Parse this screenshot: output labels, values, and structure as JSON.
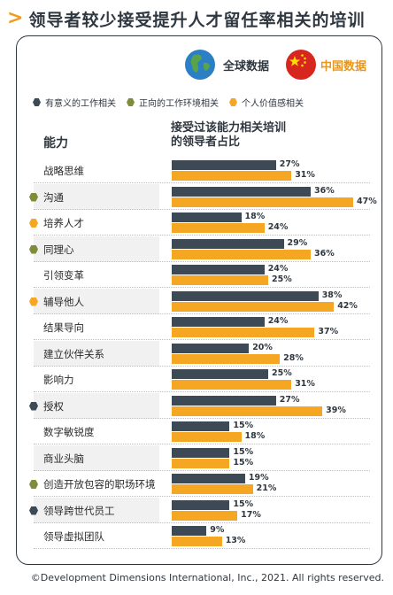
{
  "title": "领导者较少接受提升人才留任率相关的培训",
  "badges": {
    "global": "全球数据",
    "china": "中国数据"
  },
  "legend": [
    {
      "label": "有意义的工作相关",
      "color": "#3d4a56"
    },
    {
      "label": "正向的工作环境相关",
      "color": "#7d8d3a"
    },
    {
      "label": "个人价值感相关",
      "color": "#f5a623"
    }
  ],
  "column_caption": "能力",
  "column_title_line1": "接受过该能力相关培训",
  "column_title_line2": "的领导者占比",
  "footer": "©Development Dimensions International, Inc., 2021. All rights reserved.",
  "colors": {
    "global": "#3d4a56",
    "china": "#f5a623",
    "row_shade": "#f1f1f1"
  },
  "chart_data": {
    "type": "bar",
    "title": "领导者较少接受提升人才留任率相关的培训",
    "xlabel": "接受过该能力相关培训的领导者占比",
    "ylabel": "能力",
    "unit": "%",
    "xlim": [
      0,
      47
    ],
    "categories": [
      "战略思维",
      "沟通",
      "培养人才",
      "同理心",
      "引领变革",
      "辅导他人",
      "结果导向",
      "建立伙伴关系",
      "影响力",
      "授权",
      "数字敏锐度",
      "商业头脑",
      "创造开放包容的职场环境",
      "领导跨世代员工",
      "领导虚拟团队"
    ],
    "category_group": [
      "",
      "正向的工作环境相关",
      "个人价值感相关",
      "正向的工作环境相关",
      "",
      "个人价值感相关",
      "",
      "",
      "",
      "有意义的工作相关",
      "",
      "",
      "正向的工作环境相关",
      "有意义的工作相关",
      ""
    ],
    "series": [
      {
        "name": "全球数据",
        "values": [
          27,
          36,
          18,
          29,
          24,
          38,
          24,
          20,
          25,
          27,
          15,
          15,
          19,
          15,
          9
        ]
      },
      {
        "name": "中国数据",
        "values": [
          31,
          47,
          24,
          36,
          25,
          42,
          37,
          28,
          31,
          39,
          18,
          15,
          21,
          17,
          13
        ]
      }
    ]
  }
}
